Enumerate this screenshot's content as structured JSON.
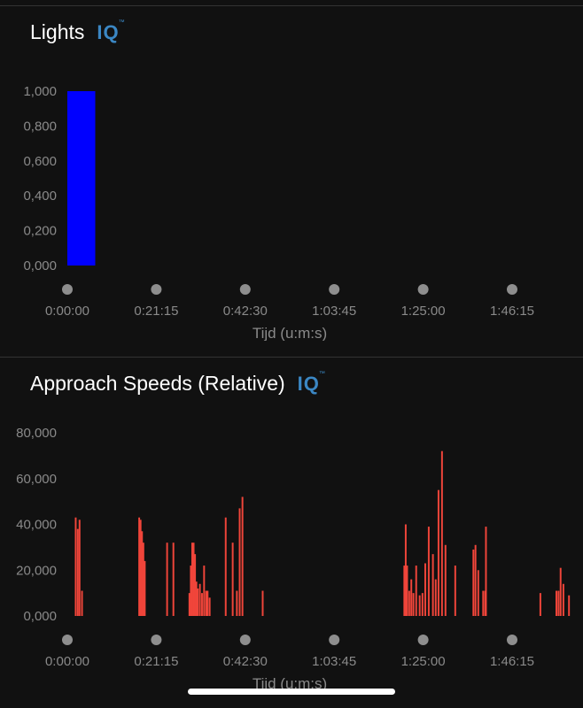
{
  "cards": [
    {
      "title": "Lights",
      "badge": "IQ",
      "badge_mark": "™"
    },
    {
      "title": "Approach Speeds (Relative)",
      "badge": "IQ",
      "badge_mark": "™"
    }
  ],
  "colors": {
    "background": "#111111",
    "lights_bar": "#0000ff",
    "speed_bar": "#f0453a",
    "axis_text": "#8a8a8a",
    "dot": "#8e8e8e",
    "iq_badge": "#3b87c4"
  },
  "chart_data": [
    {
      "type": "bar",
      "title": "Lights",
      "xlabel": "Tijd (u:m:s)",
      "ylabel": "",
      "ylim": [
        0,
        1
      ],
      "xlim": [
        0,
        7200
      ],
      "y_tick_labels": [
        "0,000",
        "0,200",
        "0,400",
        "0,600",
        "0,800",
        "1,000"
      ],
      "y_ticks": [
        0,
        0.2,
        0.4,
        0.6,
        0.8,
        1.0
      ],
      "x_tick_labels": [
        "0:00:00",
        "0:21:15",
        "0:42:30",
        "1:03:45",
        "1:25:00",
        "1:46:15"
      ],
      "x_ticks": [
        0,
        1275,
        2550,
        3825,
        5100,
        6375
      ],
      "bar_width_seconds": 400,
      "points": [
        {
          "x": 0,
          "value": 1.0
        }
      ]
    },
    {
      "type": "bar",
      "title": "Approach Speeds (Relative)",
      "xlabel": "Tijd (u:m:s)",
      "ylabel": "",
      "ylim": [
        0,
        80
      ],
      "xlim": [
        0,
        7200
      ],
      "y_tick_labels": [
        "0,000",
        "20,000",
        "40,000",
        "60,000",
        "80,000"
      ],
      "y_ticks": [
        0,
        20,
        40,
        60,
        80
      ],
      "x_tick_labels": [
        "0:00:00",
        "0:21:15",
        "0:42:30",
        "1:03:45",
        "1:25:00",
        "1:46:15"
      ],
      "x_ticks": [
        0,
        1275,
        2550,
        3825,
        5100,
        6375
      ],
      "bar_width_seconds": 25,
      "points": [
        {
          "x": 120,
          "value": 43
        },
        {
          "x": 150,
          "value": 38
        },
        {
          "x": 175,
          "value": 42
        },
        {
          "x": 210,
          "value": 11
        },
        {
          "x": 1030,
          "value": 43
        },
        {
          "x": 1050,
          "value": 42
        },
        {
          "x": 1070,
          "value": 37
        },
        {
          "x": 1090,
          "value": 32
        },
        {
          "x": 1110,
          "value": 24
        },
        {
          "x": 1430,
          "value": 32
        },
        {
          "x": 1520,
          "value": 32
        },
        {
          "x": 1750,
          "value": 10
        },
        {
          "x": 1770,
          "value": 22
        },
        {
          "x": 1790,
          "value": 32
        },
        {
          "x": 1810,
          "value": 32
        },
        {
          "x": 1830,
          "value": 27
        },
        {
          "x": 1850,
          "value": 15
        },
        {
          "x": 1870,
          "value": 12
        },
        {
          "x": 1900,
          "value": 14
        },
        {
          "x": 1930,
          "value": 10
        },
        {
          "x": 1960,
          "value": 22
        },
        {
          "x": 1990,
          "value": 11
        },
        {
          "x": 2010,
          "value": 11
        },
        {
          "x": 2040,
          "value": 8
        },
        {
          "x": 2270,
          "value": 43
        },
        {
          "x": 2370,
          "value": 32
        },
        {
          "x": 2430,
          "value": 11
        },
        {
          "x": 2470,
          "value": 47
        },
        {
          "x": 2510,
          "value": 52
        },
        {
          "x": 2800,
          "value": 11
        },
        {
          "x": 4830,
          "value": 22
        },
        {
          "x": 4850,
          "value": 40
        },
        {
          "x": 4870,
          "value": 22
        },
        {
          "x": 4900,
          "value": 11
        },
        {
          "x": 4930,
          "value": 16
        },
        {
          "x": 4960,
          "value": 10
        },
        {
          "x": 5000,
          "value": 22
        },
        {
          "x": 5050,
          "value": 9
        },
        {
          "x": 5090,
          "value": 10
        },
        {
          "x": 5130,
          "value": 23
        },
        {
          "x": 5180,
          "value": 39
        },
        {
          "x": 5240,
          "value": 27
        },
        {
          "x": 5280,
          "value": 16
        },
        {
          "x": 5320,
          "value": 55
        },
        {
          "x": 5370,
          "value": 72
        },
        {
          "x": 5420,
          "value": 31
        },
        {
          "x": 5560,
          "value": 22
        },
        {
          "x": 5820,
          "value": 29
        },
        {
          "x": 5850,
          "value": 31
        },
        {
          "x": 5890,
          "value": 20
        },
        {
          "x": 6000,
          "value": 39
        },
        {
          "x": 5960,
          "value": 11
        },
        {
          "x": 5990,
          "value": 11
        },
        {
          "x": 6780,
          "value": 10
        },
        {
          "x": 7010,
          "value": 11
        },
        {
          "x": 7040,
          "value": 11
        },
        {
          "x": 7070,
          "value": 21
        },
        {
          "x": 7110,
          "value": 14
        },
        {
          "x": 7190,
          "value": 9
        }
      ]
    }
  ]
}
